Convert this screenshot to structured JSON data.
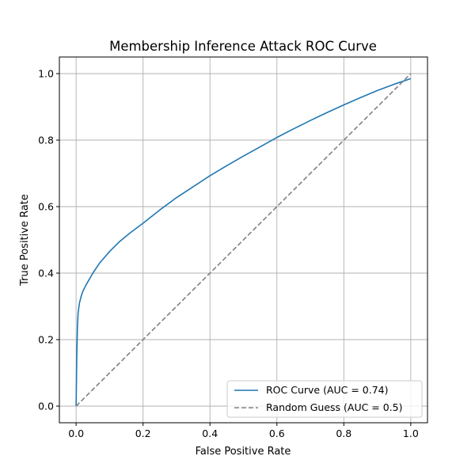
{
  "chart_data": {
    "type": "line",
    "title": "Membership Inference Attack ROC Curve",
    "xlabel": "False Positive Rate",
    "ylabel": "True Positive Rate",
    "xlim": [
      -0.05,
      1.05
    ],
    "ylim": [
      -0.05,
      1.05
    ],
    "xticks": [
      0.0,
      0.2,
      0.4,
      0.6,
      0.8,
      1.0
    ],
    "yticks": [
      0.0,
      0.2,
      0.4,
      0.6,
      0.8,
      1.0
    ],
    "xtick_labels": [
      "0.0",
      "0.2",
      "0.4",
      "0.6",
      "0.8",
      "1.0"
    ],
    "ytick_labels": [
      "0.0",
      "0.2",
      "0.4",
      "0.6",
      "0.8",
      "1.0"
    ],
    "grid": true,
    "legend_position": "lower-right",
    "series": [
      {
        "name": "ROC Curve (AUC = 0.74)",
        "color": "#1f77b4",
        "style": "solid",
        "x": [
          0.0,
          0.002,
          0.004,
          0.006,
          0.01,
          0.015,
          0.02,
          0.03,
          0.05,
          0.07,
          0.1,
          0.13,
          0.16,
          0.2,
          0.25,
          0.3,
          0.35,
          0.4,
          0.45,
          0.5,
          0.55,
          0.6,
          0.65,
          0.7,
          0.75,
          0.8,
          0.85,
          0.9,
          0.95,
          1.0
        ],
        "y": [
          0.0,
          0.15,
          0.24,
          0.28,
          0.31,
          0.33,
          0.345,
          0.365,
          0.4,
          0.43,
          0.465,
          0.495,
          0.52,
          0.55,
          0.59,
          0.627,
          0.66,
          0.693,
          0.723,
          0.752,
          0.78,
          0.808,
          0.834,
          0.859,
          0.883,
          0.906,
          0.928,
          0.949,
          0.968,
          0.985
        ]
      },
      {
        "name": "Random Guess (AUC = 0.5)",
        "color": "#808080",
        "style": "dashed",
        "x": [
          0.0,
          1.0
        ],
        "y": [
          0.0,
          1.0
        ]
      }
    ]
  }
}
